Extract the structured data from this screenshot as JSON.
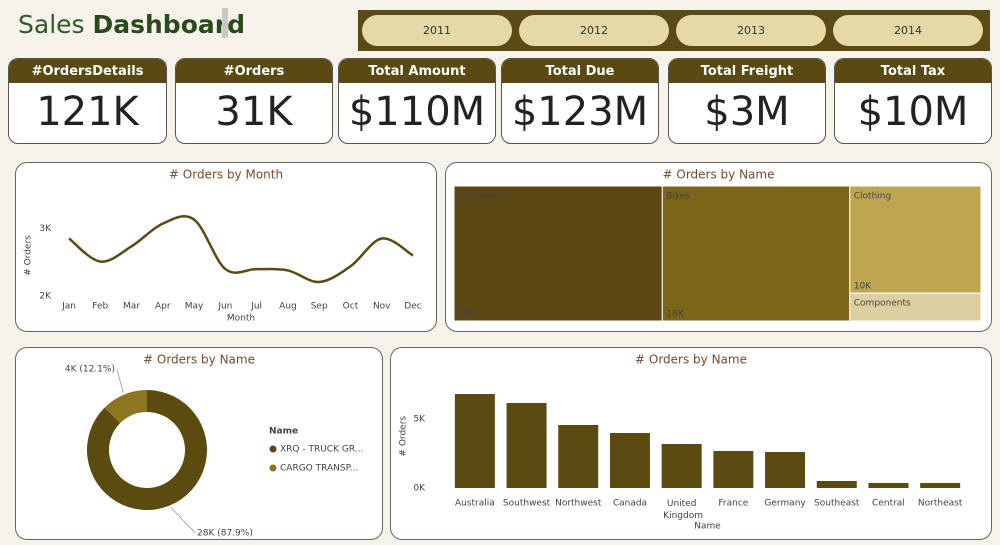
{
  "header": {
    "title": [
      "Sales",
      "Dashboard"
    ]
  },
  "filters": {
    "years": [
      "2011",
      "2012",
      "2013",
      "2014"
    ]
  },
  "kpis": [
    {
      "label": "#OrdersDetails",
      "value": "121K"
    },
    {
      "label": "#Orders",
      "value": "31K"
    },
    {
      "label": "Total Amount",
      "value": "$110M"
    },
    {
      "label": "Total Due",
      "value": "$123M"
    },
    {
      "label": "Total Freight",
      "value": "$3M"
    },
    {
      "label": "Total Tax",
      "value": "$10M"
    }
  ],
  "chart_data": [
    {
      "type": "line",
      "title": "# Orders by Month",
      "x_label": "Month",
      "y_label": "# Orders",
      "categories": [
        "Jan",
        "Feb",
        "Mar",
        "Apr",
        "May",
        "Jun",
        "Jul",
        "Aug",
        "Sep",
        "Oct",
        "Nov",
        "Dec"
      ],
      "series": [
        {
          "name": "# Orders",
          "color": "#5b4b12",
          "values": [
            2850,
            2510,
            2735,
            3070,
            3130,
            2400,
            2400,
            2380,
            2210,
            2440,
            2850,
            2600
          ]
        }
      ],
      "ylim": [
        1900,
        3300
      ],
      "yticks": [
        {
          "value": 2000,
          "label": "2K"
        },
        {
          "value": 3000,
          "label": "3K"
        }
      ]
    },
    {
      "type": "treemap",
      "title": "# Orders by Name",
      "categories": [
        "Accessories",
        "Bikes",
        "Clothing",
        "Components"
      ],
      "values": [
        20000,
        18000,
        10000,
        2600
      ],
      "value_labels": [
        "20K",
        "18K",
        "10K",
        null
      ],
      "colors": [
        "#5a4714",
        "#7c6418",
        "#bea550",
        "#ddd0a0"
      ]
    },
    {
      "type": "pie",
      "title": "# Orders by Name",
      "legend_title": "Name",
      "categories": [
        "XRQ - TRUCK GR...",
        "CARGO TRANSP..."
      ],
      "values": [
        28000,
        4000
      ],
      "value_labels": [
        "28K (87.9%)",
        "4K (12.1%)"
      ],
      "colors": [
        "#5b4b0f",
        "#8b7520"
      ]
    },
    {
      "type": "bar",
      "title": "# Orders by Name",
      "x_label": "Name",
      "y_label": "# Orders",
      "categories": [
        "Australia",
        "Southwest",
        "Northwest",
        "Canada",
        "United Kingdom",
        "France",
        "Germany",
        "Southeast",
        "Central",
        "Northeast"
      ],
      "values": [
        6810,
        6160,
        4565,
        3985,
        3190,
        2680,
        2610,
        510,
        360,
        360
      ],
      "color": "#5b4b12",
      "ylim": [
        0,
        7500
      ],
      "yticks": [
        {
          "value": 0,
          "label": "0K"
        },
        {
          "value": 5000,
          "label": "5K"
        }
      ]
    }
  ]
}
